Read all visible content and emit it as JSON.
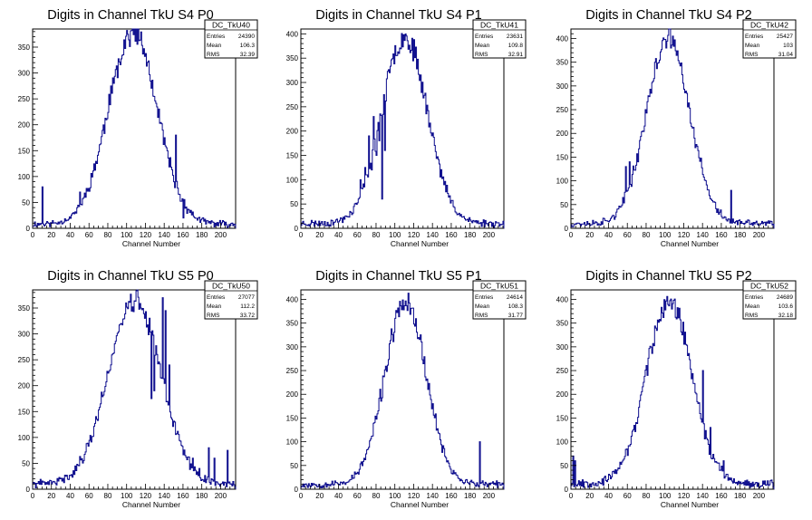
{
  "chart_data": [
    {
      "type": "histogram",
      "title": "Digits in Channel TkU S4 P0",
      "xlabel": "Channel Number",
      "xlim": [
        0,
        216
      ],
      "ylim": [
        0,
        385
      ],
      "xticks": [
        0,
        20,
        40,
        60,
        80,
        100,
        120,
        140,
        160,
        180,
        200
      ],
      "yticks": [
        50,
        100,
        150,
        200,
        250,
        300,
        350
      ],
      "stats": {
        "name": "DC_TkU40",
        "Entries": "24390",
        "Mean": "106.3",
        "RMS": "32.39"
      },
      "peak": 370,
      "mean": 106,
      "sigma": 26,
      "baseline": 8,
      "seed": 11,
      "spikes": [
        [
          10,
          80
        ],
        [
          50,
          70
        ],
        [
          152,
          180
        ],
        [
          160,
          20
        ]
      ]
    },
    {
      "type": "histogram",
      "title": "Digits in Channel TkU S4 P1",
      "xlabel": "Channel Number",
      "xlim": [
        0,
        216
      ],
      "ylim": [
        0,
        410
      ],
      "xticks": [
        0,
        20,
        40,
        60,
        80,
        100,
        120,
        140,
        160,
        180,
        200
      ],
      "yticks": [
        50,
        100,
        150,
        200,
        250,
        300,
        350,
        400
      ],
      "stats": {
        "name": "DC_TkU41",
        "Entries": "23631",
        "Mean": "109.8",
        "RMS": "32.91"
      },
      "peak": 385,
      "mean": 110,
      "sigma": 24,
      "baseline": 10,
      "seed": 23,
      "spikes": [
        [
          63,
          100
        ],
        [
          68,
          125
        ],
        [
          72,
          190
        ],
        [
          75,
          120
        ],
        [
          77,
          230
        ],
        [
          80,
          150
        ],
        [
          83,
          180
        ],
        [
          86,
          60
        ],
        [
          89,
          160
        ]
      ]
    },
    {
      "type": "histogram",
      "title": "Digits in Channel TkU S4 P2",
      "xlabel": "Channel Number",
      "xlim": [
        0,
        216
      ],
      "ylim": [
        0,
        420
      ],
      "xticks": [
        0,
        20,
        40,
        60,
        80,
        100,
        120,
        140,
        160,
        180,
        200
      ],
      "yticks": [
        50,
        100,
        150,
        200,
        250,
        300,
        350,
        400
      ],
      "stats": {
        "name": "DC_TkU42",
        "Entries": "25427",
        "Mean": "103",
        "RMS": "31.04"
      },
      "peak": 390,
      "mean": 103,
      "sigma": 23,
      "baseline": 10,
      "seed": 37,
      "spikes": [
        [
          58,
          130
        ],
        [
          62,
          140
        ],
        [
          170,
          80
        ]
      ]
    },
    {
      "type": "histogram",
      "title": "Digits in Channel TkU S5 P0",
      "xlabel": "Channel Number",
      "xlim": [
        0,
        216
      ],
      "ylim": [
        0,
        385
      ],
      "xticks": [
        0,
        20,
        40,
        60,
        80,
        100,
        120,
        140,
        160,
        180,
        200
      ],
      "yticks": [
        50,
        100,
        150,
        200,
        250,
        300,
        350
      ],
      "stats": {
        "name": "DC_TkU50",
        "Entries": "27077",
        "Mean": "112.2",
        "RMS": "33.72"
      },
      "peak": 355,
      "mean": 108,
      "sigma": 28,
      "baseline": 10,
      "seed": 41,
      "spikes": [
        [
          126,
          175
        ],
        [
          129,
          190
        ],
        [
          138,
          370
        ],
        [
          141,
          345
        ],
        [
          145,
          240
        ],
        [
          170,
          60
        ],
        [
          177,
          40
        ],
        [
          187,
          80
        ],
        [
          193,
          60
        ],
        [
          207,
          75
        ]
      ]
    },
    {
      "type": "histogram",
      "title": "Digits in Channel TkU S5 P1",
      "xlabel": "Channel Number",
      "xlim": [
        0,
        216
      ],
      "ylim": [
        0,
        420
      ],
      "xticks": [
        0,
        20,
        40,
        60,
        80,
        100,
        120,
        140,
        160,
        180,
        200
      ],
      "yticks": [
        50,
        100,
        150,
        200,
        250,
        300,
        350,
        400
      ],
      "stats": {
        "name": "DC_TkU51",
        "Entries": "24614",
        "Mean": "108.3",
        "RMS": "31.77"
      },
      "peak": 385,
      "mean": 111,
      "sigma": 22,
      "baseline": 10,
      "seed": 53,
      "spikes": [
        [
          190,
          100
        ]
      ]
    },
    {
      "type": "histogram",
      "title": "Digits in Channel TkU S5 P2",
      "xlabel": "Channel Number",
      "xlim": [
        0,
        216
      ],
      "ylim": [
        0,
        420
      ],
      "xticks": [
        0,
        20,
        40,
        60,
        80,
        100,
        120,
        140,
        160,
        180,
        200
      ],
      "yticks": [
        50,
        100,
        150,
        200,
        250,
        300,
        350,
        400
      ],
      "stats": {
        "name": "DC_TkU52",
        "Entries": "24689",
        "Mean": "103.6",
        "RMS": "32.18"
      },
      "peak": 385,
      "mean": 104,
      "sigma": 24,
      "baseline": 12,
      "seed": 67,
      "spikes": [
        [
          2,
          70
        ],
        [
          4,
          60
        ],
        [
          140,
          250
        ],
        [
          148,
          130
        ],
        [
          162,
          60
        ]
      ]
    }
  ],
  "colors": {
    "line": "#0a0a8c",
    "axis": "#000000",
    "background": "#ffffff"
  }
}
